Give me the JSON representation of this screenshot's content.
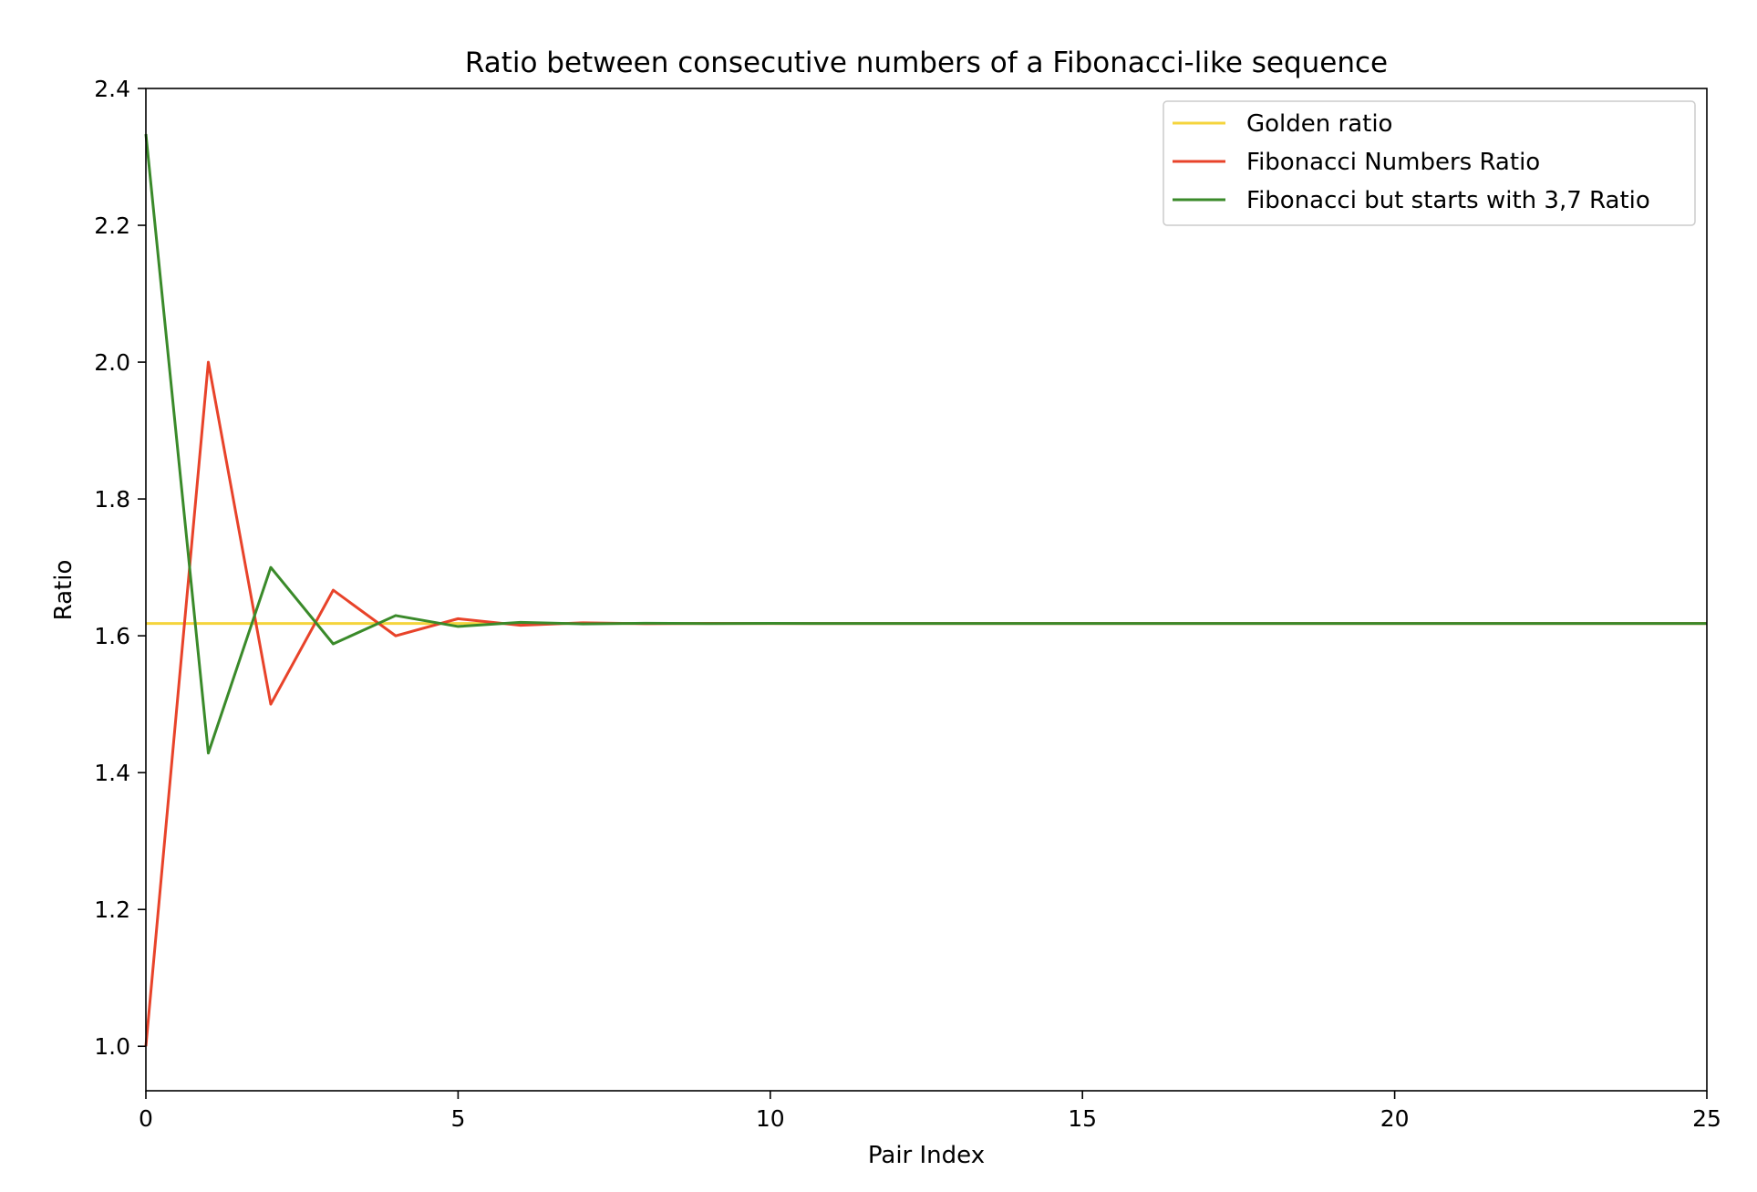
{
  "chart_data": {
    "type": "line",
    "title": "Ratio between consecutive numbers of a Fibonacci-like sequence",
    "xlabel": "Pair Index",
    "ylabel": "Ratio",
    "xlim": [
      0,
      25
    ],
    "ylim": [
      0.935,
      2.4
    ],
    "xticks": [
      0,
      5,
      10,
      15,
      20,
      25
    ],
    "yticks": [
      1.0,
      1.2,
      1.4,
      1.6,
      1.8,
      2.0,
      2.2,
      2.4
    ],
    "ytick_labels": [
      "1.0",
      "1.2",
      "1.4",
      "1.6",
      "1.8",
      "2.0",
      "2.2",
      "2.4"
    ],
    "grid": false,
    "legend_position": "top-right",
    "series": [
      {
        "name": "Golden ratio",
        "color": "#f5d43c",
        "x": [
          0,
          25
        ],
        "values": [
          1.618034,
          1.618034
        ]
      },
      {
        "name": "Fibonacci Numbers Ratio",
        "color": "#e8432a",
        "x": [
          0,
          1,
          2,
          3,
          4,
          5,
          6,
          7,
          8,
          9,
          10,
          11,
          12,
          13,
          14,
          15,
          16,
          17,
          18,
          19,
          20,
          21,
          22,
          23,
          24,
          25
        ],
        "values": [
          1.0,
          2.0,
          1.5,
          1.6667,
          1.6,
          1.625,
          1.6154,
          1.619,
          1.6176,
          1.6182,
          1.618,
          1.618,
          1.618,
          1.618,
          1.618,
          1.618,
          1.618,
          1.618,
          1.618,
          1.618,
          1.618,
          1.618,
          1.618,
          1.618,
          1.618,
          1.618
        ]
      },
      {
        "name": "Fibonacci but starts with 3,7 Ratio",
        "color": "#3a8a2a",
        "x": [
          0,
          1,
          2,
          3,
          4,
          5,
          6,
          7,
          8,
          9,
          10,
          11,
          12,
          13,
          14,
          15,
          16,
          17,
          18,
          19,
          20,
          21,
          22,
          23,
          24,
          25
        ],
        "values": [
          2.3333,
          1.4286,
          1.7,
          1.5882,
          1.6296,
          1.6136,
          1.6197,
          1.6174,
          1.6183,
          1.6179,
          1.6181,
          1.618,
          1.618,
          1.618,
          1.618,
          1.618,
          1.618,
          1.618,
          1.618,
          1.618,
          1.618,
          1.618,
          1.618,
          1.618,
          1.618,
          1.618
        ]
      }
    ]
  }
}
